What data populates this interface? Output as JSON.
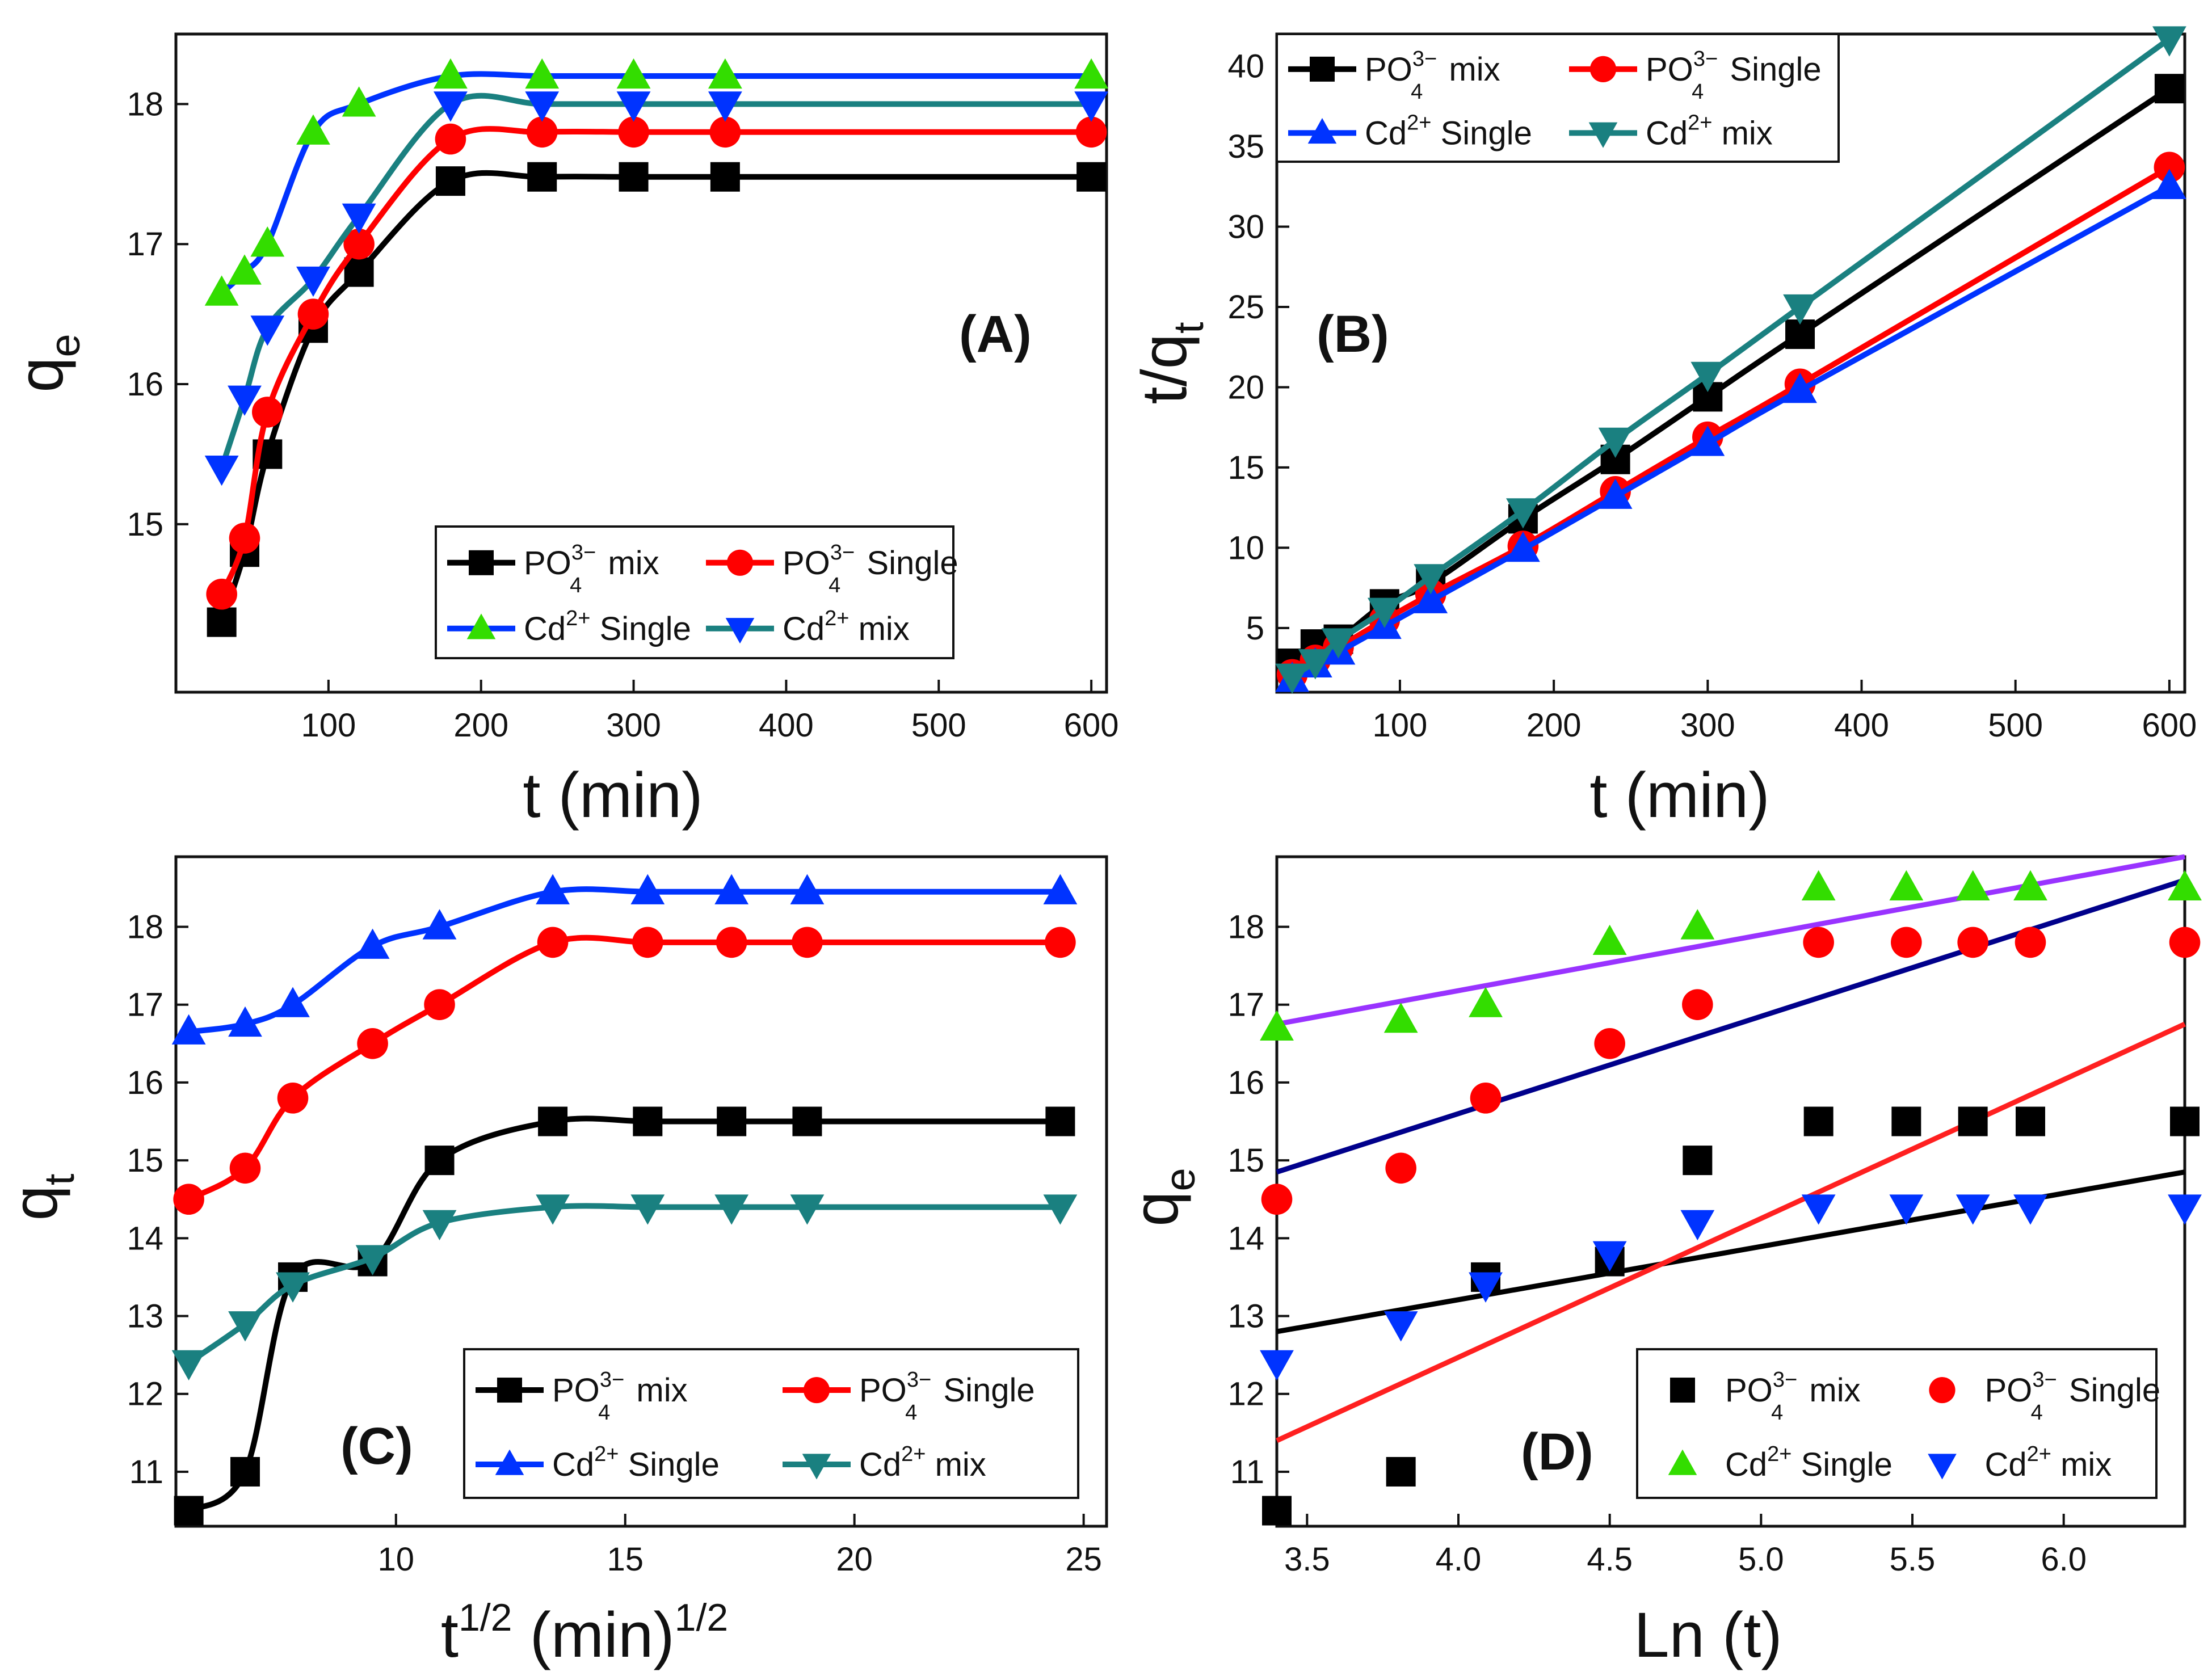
{
  "figure": {
    "panel_letters": [
      "(A)",
      "(B)",
      "(C)",
      "(D)"
    ]
  },
  "chart_data": [
    {
      "panel": "(A)",
      "type": "line",
      "xlabel": "t (min)",
      "ylabel": "qe",
      "xlim": [
        0,
        610
      ],
      "ylim": [
        13.8,
        18.5
      ],
      "xticks": [
        100,
        200,
        300,
        400,
        500,
        600
      ],
      "yticks": [
        15,
        16,
        17,
        18
      ],
      "legend_position": "bottom-right",
      "series": [
        {
          "name": "PO43− mix",
          "color": "#000000",
          "marker": "square",
          "x": [
            30,
            45,
            60,
            90,
            120,
            180,
            240,
            300,
            360,
            600
          ],
          "y": [
            14.3,
            14.8,
            15.5,
            16.4,
            16.8,
            17.45,
            17.48,
            17.48,
            17.48,
            17.48
          ]
        },
        {
          "name": "PO43− Single",
          "color": "#ff0000",
          "marker": "circle",
          "x": [
            30,
            45,
            60,
            90,
            120,
            180,
            240,
            300,
            360,
            600
          ],
          "y": [
            14.5,
            14.9,
            15.8,
            16.5,
            17.0,
            17.75,
            17.8,
            17.8,
            17.8,
            17.8
          ]
        },
        {
          "name": "Cd2+ Single",
          "color": "#0033ff",
          "line_color": "#0033ff",
          "marker_color": "#33dd00",
          "marker": "triangle-up",
          "x": [
            30,
            45,
            60,
            90,
            120,
            180,
            240,
            300,
            360,
            600
          ],
          "y": [
            16.65,
            16.8,
            17.0,
            17.8,
            18.0,
            18.2,
            18.2,
            18.2,
            18.2,
            18.2
          ]
        },
        {
          "name": "Cd2+ mix",
          "color": "#1a8080",
          "line_color": "#1a8080",
          "marker_color": "#0033ff",
          "marker": "triangle-down",
          "x": [
            30,
            45,
            60,
            90,
            120,
            180,
            240,
            300,
            360,
            600
          ],
          "y": [
            15.4,
            15.9,
            16.4,
            16.75,
            17.2,
            18.0,
            18.0,
            18.0,
            18.0,
            18.0
          ]
        }
      ]
    },
    {
      "panel": "(B)",
      "type": "line",
      "xlabel": "t (min)",
      "ylabel": "t/qt",
      "xlim": [
        20,
        610
      ],
      "ylim": [
        1,
        42
      ],
      "xticks": [
        100,
        200,
        300,
        400,
        500,
        600
      ],
      "yticks": [
        5,
        10,
        15,
        20,
        25,
        30,
        35,
        40
      ],
      "legend_position": "top-left",
      "series": [
        {
          "name": "PO43− mix",
          "color": "#000000",
          "marker": "square",
          "x": [
            30,
            45,
            60,
            90,
            120,
            180,
            240,
            300,
            360,
            600
          ],
          "y": [
            2.8,
            4.0,
            4.3,
            6.5,
            7.8,
            11.8,
            15.5,
            19.4,
            23.3,
            38.6
          ]
        },
        {
          "name": "PO43− Single",
          "color": "#ff0000",
          "marker": "circle",
          "x": [
            30,
            45,
            60,
            90,
            120,
            180,
            240,
            300,
            360,
            600
          ],
          "y": [
            2.1,
            3.0,
            3.8,
            5.5,
            7.1,
            10.1,
            13.5,
            16.9,
            20.2,
            33.7
          ]
        },
        {
          "name": "Cd2+ Single",
          "color": "#0033ff",
          "marker": "triangle-up",
          "x": [
            30,
            45,
            60,
            90,
            120,
            180,
            240,
            300,
            360,
            600
          ],
          "y": [
            1.8,
            2.7,
            3.5,
            5.1,
            6.7,
            9.9,
            13.2,
            16.5,
            19.8,
            32.5
          ]
        },
        {
          "name": "Cd2+ mix",
          "color": "#1a8080",
          "marker": "triangle-down",
          "x": [
            30,
            45,
            60,
            90,
            120,
            180,
            240,
            300,
            360,
            600
          ],
          "y": [
            2.0,
            2.9,
            4.2,
            6.1,
            8.2,
            12.3,
            16.7,
            20.8,
            25.0,
            41.7
          ]
        }
      ]
    },
    {
      "panel": "(C)",
      "type": "line",
      "xlabel": "t1/2 (min)1/2",
      "ylabel": "qt",
      "xlim": [
        5.2,
        25.5
      ],
      "ylim": [
        10.3,
        18.9
      ],
      "xticks": [
        10,
        15,
        20,
        25
      ],
      "yticks": [
        11,
        12,
        13,
        14,
        15,
        16,
        17,
        18
      ],
      "legend_position": "bottom-right",
      "series": [
        {
          "name": "PO43− mix",
          "color": "#000000",
          "marker": "square",
          "x": [
            5.48,
            6.71,
            7.75,
            9.49,
            10.95,
            13.42,
            15.49,
            17.32,
            18.97,
            24.49
          ],
          "y": [
            10.5,
            11.0,
            13.5,
            13.7,
            15.0,
            15.5,
            15.5,
            15.5,
            15.5,
            15.5
          ]
        },
        {
          "name": "PO43− Single",
          "color": "#ff0000",
          "marker": "circle",
          "x": [
            5.48,
            6.71,
            7.75,
            9.49,
            10.95,
            13.42,
            15.49,
            17.32,
            18.97,
            24.49
          ],
          "y": [
            14.5,
            14.9,
            15.8,
            16.5,
            17.0,
            17.8,
            17.8,
            17.8,
            17.8,
            17.8
          ]
        },
        {
          "name": "Cd2+ Single",
          "color": "#0033ff",
          "marker": "triangle-up",
          "x": [
            5.48,
            6.71,
            7.75,
            9.49,
            10.95,
            13.42,
            15.49,
            17.32,
            18.97,
            24.49
          ],
          "y": [
            16.65,
            16.75,
            17.0,
            17.75,
            18.0,
            18.45,
            18.45,
            18.45,
            18.45,
            18.45
          ]
        },
        {
          "name": "Cd2+ mix",
          "color": "#1a8080",
          "marker": "triangle-down",
          "x": [
            5.48,
            6.71,
            7.75,
            9.49,
            10.95,
            13.42,
            15.49,
            17.32,
            18.97,
            24.49
          ],
          "y": [
            12.4,
            12.9,
            13.4,
            13.75,
            14.2,
            14.4,
            14.4,
            14.4,
            14.4,
            14.4
          ]
        }
      ]
    },
    {
      "panel": "(D)",
      "type": "scatter",
      "xlabel": "Ln (t)",
      "ylabel": "qe",
      "xlim": [
        3.4,
        6.4
      ],
      "ylim": [
        10.3,
        18.9
      ],
      "xticks": [
        3.5,
        4.0,
        4.5,
        5.0,
        5.5,
        6.0
      ],
      "yticks": [
        11,
        12,
        13,
        14,
        15,
        16,
        17,
        18
      ],
      "legend_position": "bottom-right",
      "series": [
        {
          "name": "PO43− mix",
          "color": "#000000",
          "marker": "square",
          "x": [
            3.4,
            3.81,
            4.09,
            4.5,
            4.79,
            5.19,
            5.48,
            5.7,
            5.89,
            6.4
          ],
          "y": [
            10.5,
            11.0,
            13.5,
            13.7,
            15.0,
            15.5,
            15.5,
            15.5,
            15.5,
            15.5
          ]
        },
        {
          "name": "PO43− Single",
          "color": "#ff0000",
          "marker": "circle",
          "x": [
            3.4,
            3.81,
            4.09,
            4.5,
            4.79,
            5.19,
            5.48,
            5.7,
            5.89,
            6.4
          ],
          "y": [
            14.5,
            14.9,
            15.8,
            16.5,
            17.0,
            17.8,
            17.8,
            17.8,
            17.8,
            17.8
          ]
        },
        {
          "name": "Cd2+ Single",
          "color": "#33dd00",
          "marker": "triangle-up",
          "x": [
            3.4,
            3.81,
            4.09,
            4.5,
            4.79,
            5.19,
            5.48,
            5.7,
            5.89,
            6.4
          ],
          "y": [
            16.7,
            16.8,
            17.0,
            17.8,
            18.0,
            18.5,
            18.5,
            18.5,
            18.5,
            18.5
          ]
        },
        {
          "name": "Cd2+ mix",
          "color": "#0033ff",
          "marker": "triangle-down",
          "x": [
            3.4,
            3.81,
            4.09,
            4.5,
            4.79,
            5.19,
            5.48,
            5.7,
            5.89,
            6.4
          ],
          "y": [
            12.4,
            12.9,
            13.4,
            13.8,
            14.2,
            14.4,
            14.4,
            14.4,
            14.4,
            14.4
          ]
        }
      ],
      "fit_lines": [
        {
          "name": "PO43− mix fit",
          "color": "#000000",
          "x": [
            3.4,
            6.4
          ],
          "y": [
            12.8,
            14.85
          ]
        },
        {
          "name": "PO43− Single fit",
          "color": "#ff2020",
          "x": [
            3.4,
            6.4
          ],
          "y": [
            11.4,
            16.75
          ]
        },
        {
          "name": "Cd2+ Single fit",
          "color": "#9933ff",
          "x": [
            3.4,
            6.4
          ],
          "y": [
            16.75,
            18.9
          ]
        },
        {
          "name": "Cd2+ mix fit",
          "color": "#00008b",
          "x": [
            3.4,
            6.4
          ],
          "y": [
            14.85,
            18.6
          ]
        }
      ]
    }
  ]
}
